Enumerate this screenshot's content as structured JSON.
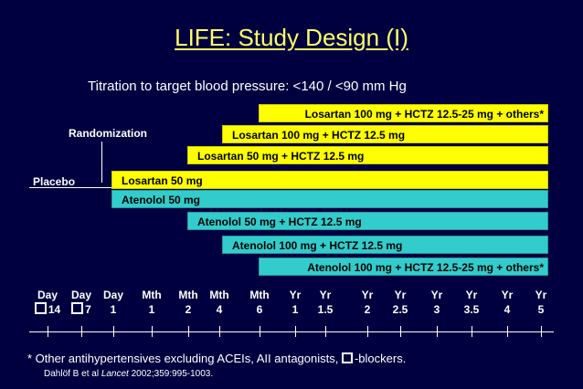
{
  "title": "LIFE: Study Design (I)",
  "subtitle": "Titration to target blood pressure: <140 / <90 mm Hg",
  "labels": {
    "randomization": "Randomization",
    "placebo": "Placebo"
  },
  "bars": {
    "losartan_step4": "Losartan 100 mg + HCTZ 12.5-25 mg + others*",
    "losartan_step3": "Losartan 100 mg + HCTZ 12.5 mg",
    "losartan_step2": "Losartan 50 mg + HCTZ 12.5 mg",
    "losartan_step1": "Losartan 50 mg",
    "atenolol_step1": "Atenolol 50 mg",
    "atenolol_step2": "Atenolol 50 mg + HCTZ 12.5 mg",
    "atenolol_step3": "Atenolol 100 mg + HCTZ 12.5 mg",
    "atenolol_step4": "Atenolol 100 mg + HCTZ 12.5-25 mg + others*"
  },
  "timepoints": [
    {
      "unit": "Day",
      "value": "14",
      "boxed": true
    },
    {
      "unit": "Day",
      "value": "7",
      "boxed": true
    },
    {
      "unit": "Day",
      "value": "1"
    },
    {
      "unit": "Mth",
      "value": "1"
    },
    {
      "unit": "Mth",
      "value": "2"
    },
    {
      "unit": "Mth",
      "value": "4"
    },
    {
      "unit": "Mth",
      "value": "6"
    },
    {
      "unit": "Yr",
      "value": "1"
    },
    {
      "unit": "Yr",
      "value": "1.5"
    },
    {
      "unit": "Yr",
      "value": "2"
    },
    {
      "unit": "Yr",
      "value": "2.5"
    },
    {
      "unit": "Yr",
      "value": "3"
    },
    {
      "unit": "Yr",
      "value": "3.5"
    },
    {
      "unit": "Yr",
      "value": "4"
    },
    {
      "unit": "Yr",
      "value": "5"
    }
  ],
  "footnote": {
    "before": "* Other antihypertensives excluding ACEIs, AII antagonists, ",
    "after": "-blockers."
  },
  "citation": {
    "authors": "Dahlöf B et al ",
    "journal": "Lancet",
    "ref": " 2002;359:995-1003."
  },
  "colors": {
    "background": "#000040",
    "title": "#ffff66",
    "losartan": "#ffff00",
    "atenolol": "#33cccc"
  }
}
